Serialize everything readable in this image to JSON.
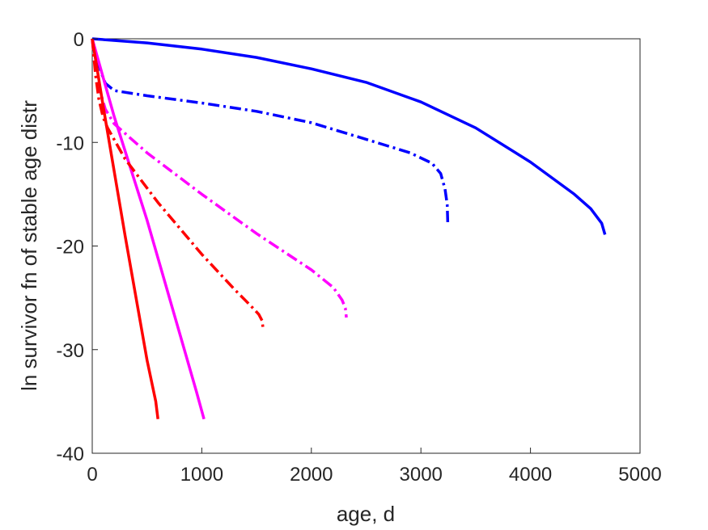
{
  "chart_data": {
    "type": "line",
    "title": "",
    "xlabel": "age, d",
    "ylabel": "ln survivor fn of stable age distr",
    "xlim": [
      0,
      5000
    ],
    "ylim": [
      -40,
      0
    ],
    "xticks": [
      0,
      1000,
      2000,
      3000,
      4000,
      5000
    ],
    "yticks": [
      0,
      -10,
      -20,
      -30,
      -40
    ],
    "xtick_labels": [
      "0",
      "1000",
      "2000",
      "3000",
      "4000",
      "5000"
    ],
    "ytick_labels": [
      "0",
      "-10",
      "-20",
      "-30",
      "-40"
    ],
    "grid": false,
    "legend": "none",
    "series": [
      {
        "color": "#0000ff",
        "dash": "solid",
        "x": [
          0,
          500,
          1000,
          1500,
          2000,
          2500,
          3000,
          3500,
          4000,
          4400,
          4550,
          4650,
          4680
        ],
        "y": [
          0,
          -0.4,
          -1.0,
          -1.8,
          -2.9,
          -4.2,
          -6.1,
          -8.6,
          -11.9,
          -15.0,
          -16.4,
          -17.8,
          -18.9
        ]
      },
      {
        "color": "#0000ff",
        "dash": "dashdot",
        "x": [
          0,
          40,
          80,
          120,
          200,
          500,
          1000,
          1500,
          2000,
          2500,
          2900,
          3100,
          3180,
          3220,
          3240,
          3245
        ],
        "y": [
          0,
          -1.8,
          -3.2,
          -4.3,
          -5.0,
          -5.5,
          -6.2,
          -7.0,
          -8.1,
          -9.7,
          -11.0,
          -12.0,
          -13.0,
          -14.5,
          -16.0,
          -17.8
        ]
      },
      {
        "color": "#ff00ff",
        "dash": "solid",
        "x": [
          0,
          200,
          500,
          800,
          950,
          1020
        ],
        "y": [
          0,
          -7.5,
          -17.5,
          -28.5,
          -34.0,
          -36.7
        ]
      },
      {
        "color": "#ff00ff",
        "dash": "dashdot",
        "x": [
          0,
          30,
          70,
          120,
          200,
          500,
          1000,
          1500,
          2000,
          2200,
          2280,
          2310,
          2320
        ],
        "y": [
          0,
          -3.0,
          -5.0,
          -6.8,
          -8.2,
          -11.0,
          -15.0,
          -18.8,
          -22.3,
          -24.0,
          -25.2,
          -26.0,
          -26.9
        ]
      },
      {
        "color": "#ff0000",
        "dash": "solid",
        "x": [
          0,
          100,
          300,
          500,
          580,
          600
        ],
        "y": [
          0,
          -6.5,
          -19.0,
          -31.0,
          -35.0,
          -36.7
        ]
      },
      {
        "color": "#ff0000",
        "dash": "dashdot",
        "x": [
          0,
          30,
          60,
          100,
          140,
          300,
          600,
          1000,
          1300,
          1450,
          1520,
          1550,
          1560
        ],
        "y": [
          0,
          -3.5,
          -5.8,
          -7.6,
          -8.6,
          -11.6,
          -15.8,
          -20.8,
          -24.2,
          -25.8,
          -26.6,
          -27.2,
          -28.0
        ]
      }
    ]
  }
}
